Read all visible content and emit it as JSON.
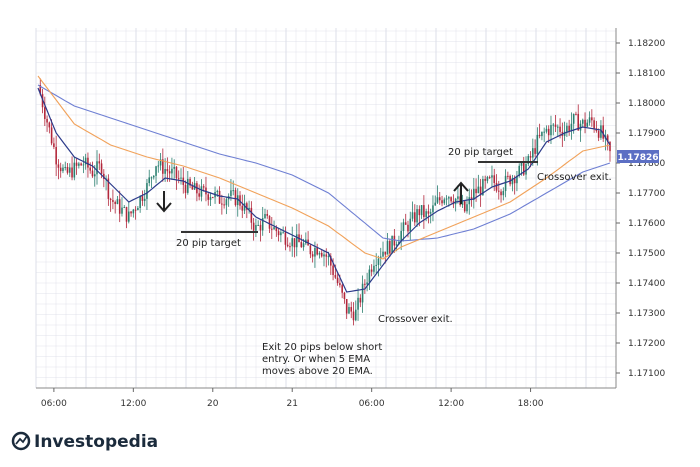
{
  "chart_data": {
    "type": "candlestick",
    "x_ticks": [
      "06:00",
      "12:00",
      "20",
      "21",
      "06:00",
      "12:00",
      "18:00"
    ],
    "y_ticks": [
      "1.18200",
      "1.18100",
      "1.18000",
      "1.17900",
      "1.17800",
      "1.17700",
      "1.17600",
      "1.17500",
      "1.17400",
      "1.17300",
      "1.17200",
      "1.17100"
    ],
    "ylim": [
      1.1705,
      1.1825
    ],
    "current_price": "1.17826",
    "close_path": [
      [
        0,
        1.1806
      ],
      [
        4,
        1.1794
      ],
      [
        8,
        1.1782
      ],
      [
        12,
        1.1776
      ],
      [
        16,
        1.1778
      ],
      [
        20,
        1.178
      ],
      [
        24,
        1.1777
      ],
      [
        28,
        1.1779
      ],
      [
        32,
        1.1768
      ],
      [
        36,
        1.1765
      ],
      [
        40,
        1.1762
      ],
      [
        44,
        1.1767
      ],
      [
        48,
        1.1772
      ],
      [
        52,
        1.178
      ],
      [
        56,
        1.1778
      ],
      [
        60,
        1.1776
      ],
      [
        64,
        1.1773
      ],
      [
        68,
        1.1771
      ],
      [
        72,
        1.177
      ],
      [
        76,
        1.177
      ],
      [
        80,
        1.1768
      ],
      [
        84,
        1.1769
      ],
      [
        88,
        1.1768
      ],
      [
        92,
        1.1764
      ],
      [
        96,
        1.1758
      ],
      [
        100,
        1.1761
      ],
      [
        104,
        1.1758
      ],
      [
        108,
        1.1756
      ],
      [
        112,
        1.1754
      ],
      [
        116,
        1.1753
      ],
      [
        120,
        1.1751
      ],
      [
        124,
        1.1752
      ],
      [
        128,
        1.1748
      ],
      [
        132,
        1.174
      ],
      [
        136,
        1.1731
      ],
      [
        140,
        1.173
      ],
      [
        144,
        1.174
      ],
      [
        148,
        1.1748
      ],
      [
        152,
        1.1751
      ],
      [
        156,
        1.1753
      ],
      [
        160,
        1.1757
      ],
      [
        164,
        1.176
      ],
      [
        168,
        1.1764
      ],
      [
        172,
        1.1762
      ],
      [
        176,
        1.1767
      ],
      [
        180,
        1.177
      ],
      [
        184,
        1.1768
      ],
      [
        188,
        1.1764
      ],
      [
        192,
        1.177
      ],
      [
        196,
        1.1772
      ],
      [
        200,
        1.1774
      ],
      [
        204,
        1.1772
      ],
      [
        208,
        1.1775
      ],
      [
        212,
        1.1777
      ],
      [
        216,
        1.178
      ],
      [
        220,
        1.1787
      ],
      [
        224,
        1.1791
      ],
      [
        228,
        1.1792
      ],
      [
        232,
        1.1791
      ],
      [
        236,
        1.1794
      ],
      [
        240,
        1.1793
      ],
      [
        244,
        1.1794
      ],
      [
        248,
        1.179
      ],
      [
        252,
        1.1783
      ]
    ],
    "ema_5_path": [
      [
        0,
        1.1805
      ],
      [
        8,
        1.179
      ],
      [
        16,
        1.1782
      ],
      [
        24,
        1.1779
      ],
      [
        32,
        1.1773
      ],
      [
        40,
        1.1767
      ],
      [
        48,
        1.177
      ],
      [
        56,
        1.1775
      ],
      [
        64,
        1.1774
      ],
      [
        72,
        1.1771
      ],
      [
        80,
        1.1769
      ],
      [
        88,
        1.1768
      ],
      [
        96,
        1.1762
      ],
      [
        104,
        1.1759
      ],
      [
        112,
        1.1756
      ],
      [
        120,
        1.1753
      ],
      [
        128,
        1.175
      ],
      [
        136,
        1.1737
      ],
      [
        144,
        1.1738
      ],
      [
        152,
        1.1746
      ],
      [
        160,
        1.1754
      ],
      [
        168,
        1.176
      ],
      [
        176,
        1.1764
      ],
      [
        184,
        1.1767
      ],
      [
        192,
        1.1768
      ],
      [
        200,
        1.1772
      ],
      [
        208,
        1.1774
      ],
      [
        216,
        1.1778
      ],
      [
        224,
        1.1787
      ],
      [
        232,
        1.179
      ],
      [
        240,
        1.1792
      ],
      [
        248,
        1.1791
      ],
      [
        252,
        1.1786
      ]
    ],
    "ema_20_path": [
      [
        0,
        1.1809
      ],
      [
        16,
        1.1793
      ],
      [
        32,
        1.1786
      ],
      [
        48,
        1.1782
      ],
      [
        64,
        1.1779
      ],
      [
        80,
        1.1775
      ],
      [
        96,
        1.177
      ],
      [
        112,
        1.1765
      ],
      [
        128,
        1.1759
      ],
      [
        144,
        1.175
      ],
      [
        152,
        1.1748
      ],
      [
        160,
        1.1752
      ],
      [
        176,
        1.1757
      ],
      [
        192,
        1.1762
      ],
      [
        208,
        1.1767
      ],
      [
        224,
        1.1775
      ],
      [
        240,
        1.1784
      ],
      [
        252,
        1.1786
      ]
    ],
    "slow_ma_path": [
      [
        0,
        1.1806
      ],
      [
        16,
        1.1799
      ],
      [
        32,
        1.1795
      ],
      [
        48,
        1.1791
      ],
      [
        64,
        1.1787
      ],
      [
        80,
        1.1783
      ],
      [
        96,
        1.178
      ],
      [
        112,
        1.1776
      ],
      [
        128,
        1.177
      ],
      [
        144,
        1.176
      ],
      [
        152,
        1.1755
      ],
      [
        160,
        1.1754
      ],
      [
        176,
        1.1755
      ],
      [
        192,
        1.1758
      ],
      [
        208,
        1.1763
      ],
      [
        224,
        1.177
      ],
      [
        240,
        1.1777
      ],
      [
        252,
        1.178
      ]
    ],
    "annotations": {
      "short_target": "20 pip target",
      "long_target": "20 pip target",
      "crossover_exit_1": "Crossover exit.",
      "crossover_exit_2": "Crossover exit.",
      "exit_note_1": "Exit 20 pips below short",
      "exit_note_2": "entry.  Or when 5 EMA",
      "exit_note_3": "moves above 20 EMA."
    }
  },
  "brand": {
    "name": "Investopedia"
  },
  "colors": {
    "candle_up": "#2a7f6f",
    "candle_down": "#b2273b",
    "ema_5": "#2b3a8a",
    "ema_20": "#f1a25a",
    "slow_ma": "#6e7fd3",
    "price_badge": "#5c6fc4",
    "grid": "#d9dce6"
  }
}
